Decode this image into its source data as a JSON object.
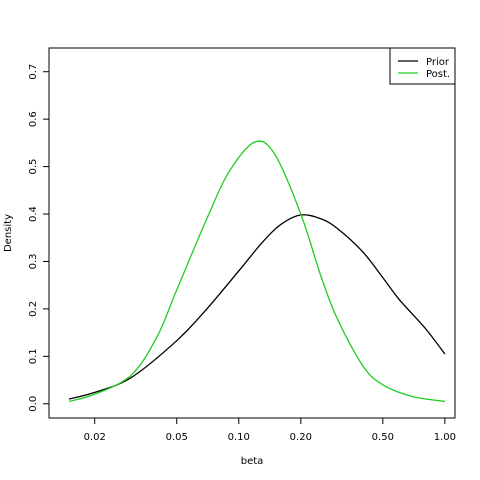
{
  "chart_data": {
    "type": "line",
    "title": "",
    "xlabel": "beta",
    "ylabel": "Density",
    "x_scale": "log",
    "xlim": [
      0.012,
      1.12
    ],
    "ylim": [
      -0.03,
      0.75
    ],
    "x_ticks": [
      0.02,
      0.05,
      0.1,
      0.2,
      0.5,
      1.0
    ],
    "x_tick_labels": [
      "0.02",
      "0.05",
      "0.10",
      "0.20",
      "0.50",
      "1.00"
    ],
    "y_ticks": [
      0.0,
      0.1,
      0.2,
      0.3,
      0.4,
      0.5,
      0.6,
      0.7
    ],
    "y_tick_labels": [
      "0.0",
      "0.1",
      "0.2",
      "0.3",
      "0.4",
      "0.5",
      "0.6",
      "0.7"
    ],
    "grid": false,
    "legend_position": "top-right",
    "series": [
      {
        "name": "Prior",
        "color": "#000000",
        "x": [
          0.015,
          0.02,
          0.03,
          0.05,
          0.07,
          0.1,
          0.13,
          0.16,
          0.2,
          0.25,
          0.3,
          0.4,
          0.5,
          0.6,
          0.8,
          1.0
        ],
        "y": [
          0.01,
          0.024,
          0.055,
          0.133,
          0.2,
          0.28,
          0.34,
          0.378,
          0.398,
          0.39,
          0.37,
          0.32,
          0.266,
          0.22,
          0.16,
          0.105
        ]
      },
      {
        "name": "Post.",
        "color": "#22cc22",
        "x": [
          0.015,
          0.02,
          0.03,
          0.04,
          0.05,
          0.07,
          0.09,
          0.12,
          0.15,
          0.2,
          0.25,
          0.3,
          0.4,
          0.5,
          0.7,
          1.0
        ],
        "y": [
          0.005,
          0.02,
          0.06,
          0.14,
          0.24,
          0.39,
          0.49,
          0.552,
          0.525,
          0.4,
          0.27,
          0.18,
          0.08,
          0.04,
          0.015,
          0.005
        ]
      }
    ]
  }
}
